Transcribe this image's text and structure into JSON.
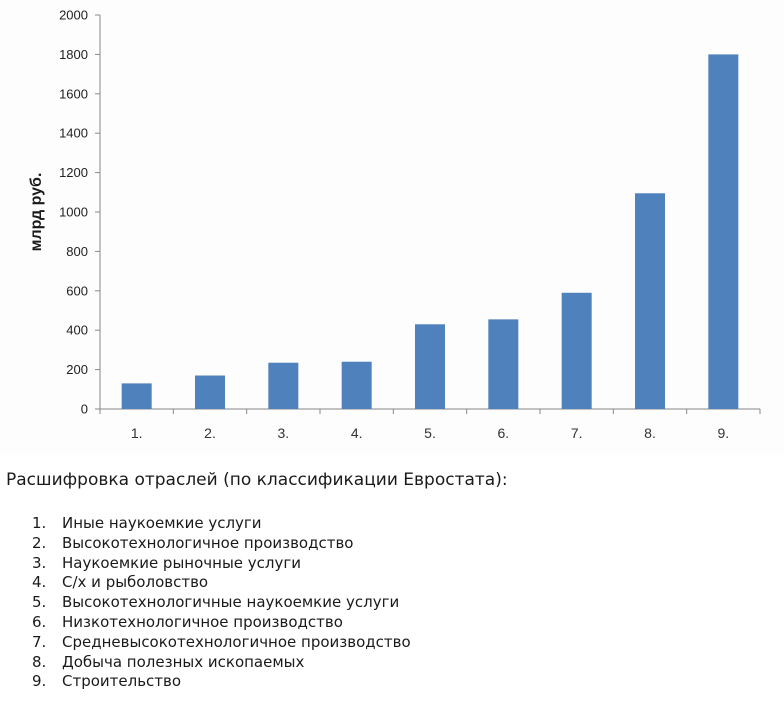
{
  "chart_data": {
    "type": "bar",
    "categories": [
      "1.",
      "2.",
      "3.",
      "4.",
      "5.",
      "6.",
      "7.",
      "8.",
      "9."
    ],
    "values": [
      130,
      170,
      235,
      240,
      430,
      455,
      590,
      1095,
      1800
    ],
    "title": "",
    "xlabel": "",
    "ylabel": "млрд руб.",
    "ylim": [
      0,
      2000
    ],
    "yticks": [
      0,
      200,
      400,
      600,
      800,
      1000,
      1200,
      1400,
      1600,
      1800,
      2000
    ],
    "grid": false,
    "bar_color": "#4F81BD"
  },
  "legend": {
    "title": "Расшифровка отраслей (по классификации Евростата):",
    "items": [
      {
        "num": "1.",
        "label": "Иные наукоемкие услуги"
      },
      {
        "num": "2.",
        "label": "Высокотехнологичное производство"
      },
      {
        "num": "3.",
        "label": "Наукоемкие рыночные услуги"
      },
      {
        "num": "4.",
        "label": "С/х и рыболовство"
      },
      {
        "num": "5.",
        "label": "Высокотехнологичные наукоемкие услуги"
      },
      {
        "num": "6.",
        "label": "Низкотехнологичное производство"
      },
      {
        "num": "7.",
        "label": "Средневысокотехнологичное производство"
      },
      {
        "num": "8.",
        "label": "Добыча полезных ископаемых"
      },
      {
        "num": "9.",
        "label": "Строительство"
      }
    ]
  }
}
